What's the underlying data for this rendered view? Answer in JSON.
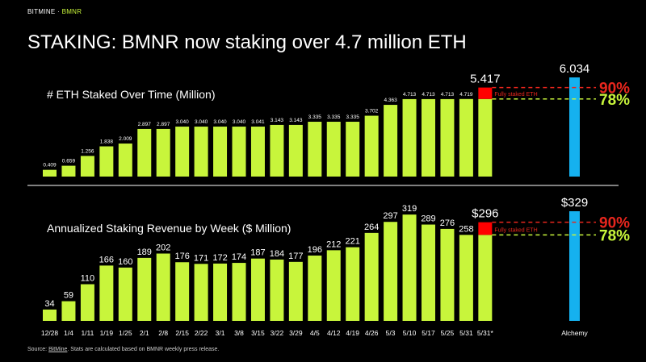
{
  "header": {
    "brand_name": "BITMINE",
    "brand_separator": " · ",
    "ticker": "BMNR",
    "title": "STAKING: BMNR now staking over 4.7 million ETH"
  },
  "footer": {
    "source_prefix": "Source: ",
    "source_link": "BitMine",
    "source_rest": ". Stats are calculated based on BMNR weekly press release."
  },
  "colors": {
    "bar": "#c8f53b",
    "projection": "#ff0000",
    "alchemy": "#15b1ef",
    "line_90": "#e8261d",
    "line_78": "#c8f53b",
    "text": "#ffffff",
    "background": "#000000"
  },
  "chart_data": [
    {
      "type": "bar",
      "title": "# ETH Staked Over Time (Million)",
      "categories": [
        "12/28",
        "1/4",
        "1/11",
        "1/19",
        "1/25",
        "2/1",
        "2/8",
        "2/15",
        "2/22",
        "3/1",
        "3/8",
        "3/15",
        "3/22",
        "3/29",
        "4/5",
        "4/12",
        "4/19",
        "4/26",
        "5/3",
        "5/10",
        "5/17",
        "5/25",
        "5/31",
        "5/31*"
      ],
      "values": [
        0.409,
        0.659,
        1.256,
        1.838,
        2.009,
        2.897,
        2.897,
        3.04,
        3.04,
        3.04,
        3.04,
        3.041,
        3.143,
        3.143,
        3.335,
        3.335,
        3.335,
        3.702,
        4.363,
        4.713,
        4.713,
        4.713,
        4.719,
        5.417
      ],
      "value_labels": [
        "0.409",
        "0.659",
        "1.256",
        "1.838",
        "2.009",
        "2.897",
        "2.897",
        "3.040",
        "3.040",
        "3.040",
        "3.040",
        "3.041",
        "3.143",
        "3.143",
        "3.335",
        "3.335",
        "3.335",
        "3.702",
        "4.363",
        "4.713",
        "4.713",
        "4.713",
        "4.719",
        "5.417"
      ],
      "projection": {
        "category": "5/31*",
        "stacked_label": "Fully staked ETH"
      },
      "alchemy": {
        "category": "Alchemy",
        "value": 6.034,
        "label": "6.034"
      },
      "reference_lines": [
        {
          "label": "90%",
          "value": 5.417
        },
        {
          "label": "78%",
          "value": 4.719
        }
      ],
      "ylim": [
        0,
        6.034
      ]
    },
    {
      "type": "bar",
      "title": "Annualized Staking Revenue by Week ($ Million)",
      "categories": [
        "12/28",
        "1/4",
        "1/11",
        "1/19",
        "1/25",
        "2/1",
        "2/8",
        "2/15",
        "2/22",
        "3/1",
        "3/8",
        "3/15",
        "3/22",
        "3/29",
        "4/5",
        "4/12",
        "4/19",
        "4/26",
        "5/3",
        "5/10",
        "5/17",
        "5/25",
        "5/31",
        "5/31*"
      ],
      "values": [
        34,
        59,
        110,
        166,
        160,
        189,
        202,
        176,
        171,
        172,
        174,
        187,
        184,
        177,
        196,
        212,
        221,
        264,
        297,
        319,
        289,
        276,
        258,
        296
      ],
      "value_labels": [
        "34",
        "59",
        "110",
        "166",
        "160",
        "189",
        "202",
        "176",
        "171",
        "172",
        "174",
        "187",
        "184",
        "177",
        "196",
        "212",
        "221",
        "264",
        "297",
        "319",
        "289",
        "276",
        "258",
        "$296"
      ],
      "projection": {
        "category": "5/31*",
        "stacked_label": "Fully staked ETH"
      },
      "alchemy": {
        "category": "Alchemy",
        "value": 329,
        "label": "$329"
      },
      "reference_lines": [
        {
          "label": "90%",
          "value": 296
        },
        {
          "label": "78%",
          "value": 258
        }
      ],
      "ylim": [
        0,
        329
      ]
    }
  ]
}
